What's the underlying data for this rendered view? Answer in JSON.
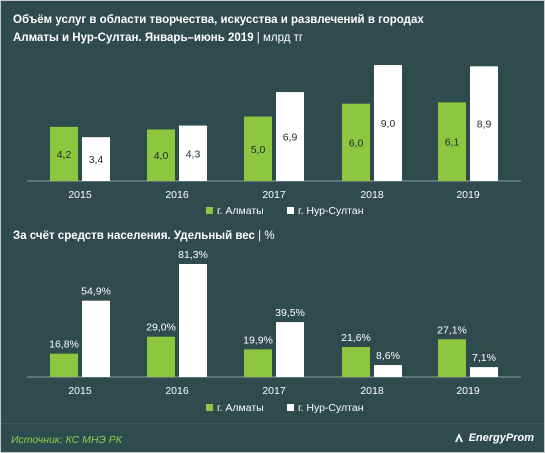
{
  "header": {
    "title_line1": "Объём услуг в области творчества,  искусства  и развлечений в городах",
    "title_line2": "Алматы и Нур-Султан. Январь–июнь  2019",
    "title_unit": " | млрд тг"
  },
  "section2": {
    "title": "За счёт средств населения. Удельный вес",
    "unit": " |  %"
  },
  "footer": {
    "source": "Источник: КС МНЭ РК",
    "brand": "EnergyProm"
  },
  "colors": {
    "background": "#2f4b4d",
    "almaty": "#8dc63f",
    "nursultan": "#ffffff",
    "axis": "#8aa0a0"
  },
  "chart_data": [
    {
      "type": "bar",
      "categories": [
        "2015",
        "2016",
        "2017",
        "2018",
        "2019"
      ],
      "series": [
        {
          "name": "г. Алматы",
          "values": [
            4.2,
            4.0,
            5.0,
            6.0,
            6.1
          ],
          "labels": [
            "4,2",
            "4,0",
            "5,0",
            "6,0",
            "6,1"
          ],
          "color": "#8dc63f"
        },
        {
          "name": "г. Нур-Султан",
          "values": [
            3.4,
            4.3,
            6.9,
            9.0,
            8.9
          ],
          "labels": [
            "3,4",
            "4,3",
            "6,9",
            "9,0",
            "8,9"
          ],
          "color": "#ffffff"
        }
      ],
      "ylim": [
        0,
        9.0
      ],
      "legend": "bottom-center",
      "grid": false
    },
    {
      "type": "bar",
      "categories": [
        "2015",
        "2016",
        "2017",
        "2018",
        "2019"
      ],
      "series": [
        {
          "name": "г. Алматы",
          "values": [
            16.8,
            29.0,
            19.9,
            21.6,
            27.1
          ],
          "labels": [
            "16,8%",
            "29,0%",
            "19,9%",
            "21,6%",
            "27,1%"
          ],
          "color": "#8dc63f"
        },
        {
          "name": "г. Нур-Султан",
          "values": [
            54.9,
            81.3,
            39.5,
            8.6,
            7.1
          ],
          "labels": [
            "54,9%",
            "81,3%",
            "39,5%",
            "8,6%",
            "7,1%"
          ],
          "color": "#ffffff"
        }
      ],
      "ylim": [
        0,
        81.3
      ],
      "legend": "bottom-center",
      "grid": false
    }
  ]
}
